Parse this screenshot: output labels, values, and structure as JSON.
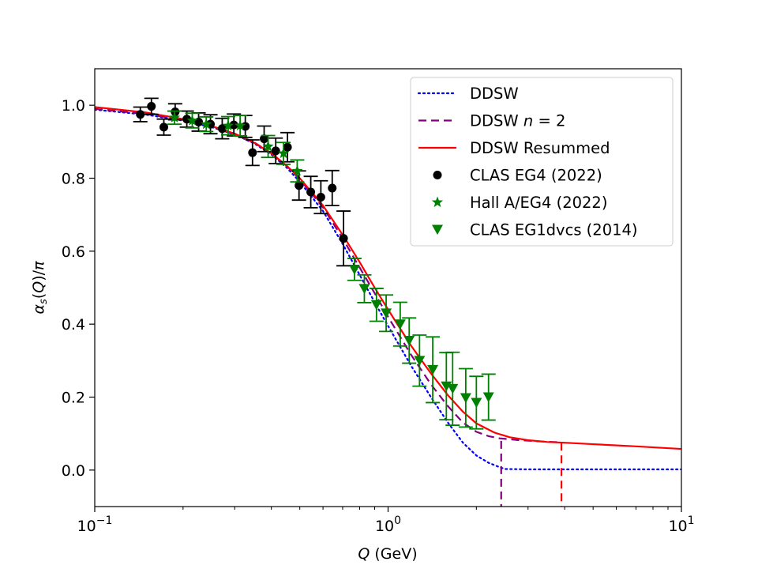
{
  "chart_data": {
    "type": "scatter",
    "title": "",
    "xlabel": "Q (GeV)",
    "ylabel": "αs(Q)/π",
    "xscale": "log",
    "xlim": [
      0.1,
      10
    ],
    "ylim": [
      -0.1,
      1.1
    ],
    "x_ticks": [
      {
        "value": 0.1,
        "base": "10",
        "exp": "−1"
      },
      {
        "value": 1,
        "base": "10",
        "exp": "0"
      },
      {
        "value": 10,
        "base": "10",
        "exp": "1"
      }
    ],
    "y_ticks": [
      {
        "value": 0.0,
        "label": "0.0"
      },
      {
        "value": 0.2,
        "label": "0.2"
      },
      {
        "value": 0.4,
        "label": "0.4"
      },
      {
        "value": 0.6,
        "label": "0.6"
      },
      {
        "value": 0.8,
        "label": "0.8"
      },
      {
        "value": 1.0,
        "label": "1.0"
      }
    ],
    "legend_position": "top-right",
    "legend": [
      {
        "label": "DDSW",
        "kind": "line",
        "style": "dotted",
        "color": "#0000ff"
      },
      {
        "label_main": "DDSW ",
        "label_italic": "n",
        "label_tail": " = 2",
        "kind": "line",
        "style": "dashed",
        "color": "#800080"
      },
      {
        "label": "DDSW Resummed",
        "kind": "line",
        "style": "solid",
        "color": "#ff0000"
      },
      {
        "label": "CLAS EG4 (2022)",
        "kind": "marker",
        "marker": "circle",
        "color": "#000000"
      },
      {
        "label": "Hall A/EG4 (2022)",
        "kind": "marker",
        "marker": "star",
        "color": "#008000"
      },
      {
        "label": "CLAS EG1dvcs (2014)",
        "kind": "marker",
        "marker": "triangle-down",
        "color": "#008000"
      }
    ],
    "series": [
      {
        "name": "DDSW",
        "kind": "line",
        "style": "dotted",
        "color": "#0000ff",
        "x": [
          0.1,
          0.15,
          0.2,
          0.25,
          0.3,
          0.35,
          0.4,
          0.45,
          0.5,
          0.6,
          0.7,
          0.8,
          0.9,
          1.0,
          1.2,
          1.4,
          1.6,
          1.8,
          2.0,
          2.2,
          2.4,
          2.5,
          3.0,
          5.0,
          10.0
        ],
        "y": [
          0.988,
          0.974,
          0.958,
          0.94,
          0.92,
          0.895,
          0.865,
          0.83,
          0.79,
          0.71,
          0.62,
          0.535,
          0.46,
          0.395,
          0.285,
          0.2,
          0.13,
          0.075,
          0.04,
          0.02,
          0.008,
          0.003,
          0.002,
          0.002,
          0.002
        ]
      },
      {
        "name": "DDSW n = 2",
        "kind": "line",
        "style": "dashed",
        "color": "#800080",
        "x": [
          0.1,
          0.15,
          0.2,
          0.25,
          0.3,
          0.35,
          0.4,
          0.45,
          0.5,
          0.6,
          0.7,
          0.8,
          0.9,
          1.0,
          1.2,
          1.4,
          1.6,
          1.8,
          2.0,
          2.2,
          2.4,
          2.8,
          3.4,
          3.9
        ],
        "y": [
          0.99,
          0.976,
          0.96,
          0.942,
          0.922,
          0.898,
          0.868,
          0.835,
          0.797,
          0.72,
          0.635,
          0.555,
          0.485,
          0.42,
          0.315,
          0.235,
          0.175,
          0.13,
          0.105,
          0.093,
          0.087,
          0.082,
          0.078,
          0.076
        ]
      },
      {
        "name": "DDSW Resummed",
        "kind": "line",
        "style": "solid",
        "color": "#ff0000",
        "x": [
          0.1,
          0.15,
          0.2,
          0.25,
          0.3,
          0.35,
          0.4,
          0.45,
          0.5,
          0.6,
          0.7,
          0.8,
          0.9,
          1.0,
          1.2,
          1.4,
          1.6,
          1.8,
          2.0,
          2.3,
          2.6,
          3.0,
          3.5,
          4.0,
          5.0,
          7.0,
          10.0
        ],
        "y": [
          0.995,
          0.98,
          0.962,
          0.943,
          0.922,
          0.897,
          0.868,
          0.835,
          0.8,
          0.725,
          0.645,
          0.57,
          0.5,
          0.44,
          0.34,
          0.265,
          0.205,
          0.16,
          0.128,
          0.103,
          0.09,
          0.082,
          0.077,
          0.075,
          0.071,
          0.065,
          0.058
        ]
      },
      {
        "name": "DDSW n = 2 cutoff",
        "kind": "vline",
        "style": "dashed",
        "color": "#800080",
        "x": 2.43,
        "y_from": -0.1,
        "y_to": 0.08
      },
      {
        "name": "DDSW Resummed cutoff",
        "kind": "vline",
        "style": "dashed",
        "color": "#ff0000",
        "x": 3.9,
        "y_from": -0.1,
        "y_to": 0.075
      },
      {
        "name": "CLAS EG4 (2022)",
        "kind": "points",
        "marker": "circle",
        "color": "#000000",
        "points": [
          {
            "x": 0.143,
            "y": 0.975,
            "err": 0.02
          },
          {
            "x": 0.156,
            "y": 0.997,
            "err": 0.022
          },
          {
            "x": 0.172,
            "y": 0.94,
            "err": 0.022
          },
          {
            "x": 0.188,
            "y": 0.982,
            "err": 0.022
          },
          {
            "x": 0.206,
            "y": 0.962,
            "err": 0.022
          },
          {
            "x": 0.226,
            "y": 0.954,
            "err": 0.025
          },
          {
            "x": 0.248,
            "y": 0.948,
            "err": 0.026
          },
          {
            "x": 0.272,
            "y": 0.936,
            "err": 0.028
          },
          {
            "x": 0.298,
            "y": 0.946,
            "err": 0.03
          },
          {
            "x": 0.326,
            "y": 0.942,
            "err": 0.03
          },
          {
            "x": 0.345,
            "y": 0.87,
            "err": 0.035
          },
          {
            "x": 0.378,
            "y": 0.908,
            "err": 0.035
          },
          {
            "x": 0.414,
            "y": 0.875,
            "err": 0.035
          },
          {
            "x": 0.454,
            "y": 0.885,
            "err": 0.04
          },
          {
            "x": 0.497,
            "y": 0.78,
            "err": 0.04
          },
          {
            "x": 0.545,
            "y": 0.762,
            "err": 0.043
          },
          {
            "x": 0.59,
            "y": 0.748,
            "err": 0.045
          },
          {
            "x": 0.645,
            "y": 0.773,
            "err": 0.048
          },
          {
            "x": 0.705,
            "y": 0.635,
            "err": 0.075
          }
        ]
      },
      {
        "name": "Hall A/EG4 (2022)",
        "kind": "points",
        "marker": "star",
        "color": "#008000",
        "points": [
          {
            "x": 0.187,
            "y": 0.966,
            "err": 0.018
          },
          {
            "x": 0.215,
            "y": 0.958,
            "err": 0.02
          },
          {
            "x": 0.24,
            "y": 0.948,
            "err": 0.02
          },
          {
            "x": 0.285,
            "y": 0.944,
            "err": 0.025
          },
          {
            "x": 0.313,
            "y": 0.944,
            "err": 0.028
          },
          {
            "x": 0.39,
            "y": 0.887,
            "err": 0.03
          },
          {
            "x": 0.44,
            "y": 0.868,
            "err": 0.03
          },
          {
            "x": 0.49,
            "y": 0.82,
            "err": 0.03
          }
        ]
      },
      {
        "name": "CLAS EG1dvcs (2014)",
        "kind": "points",
        "marker": "triangle-down",
        "color": "#008000",
        "points": [
          {
            "x": 0.768,
            "y": 0.55,
            "err": 0.03
          },
          {
            "x": 0.83,
            "y": 0.497,
            "err": 0.038
          },
          {
            "x": 0.913,
            "y": 0.453,
            "err": 0.045
          },
          {
            "x": 0.985,
            "y": 0.43,
            "err": 0.05
          },
          {
            "x": 1.1,
            "y": 0.4,
            "err": 0.06
          },
          {
            "x": 1.18,
            "y": 0.355,
            "err": 0.062
          },
          {
            "x": 1.28,
            "y": 0.3,
            "err": 0.07
          },
          {
            "x": 1.42,
            "y": 0.275,
            "err": 0.09
          },
          {
            "x": 1.58,
            "y": 0.23,
            "err": 0.092
          },
          {
            "x": 1.66,
            "y": 0.223,
            "err": 0.1
          },
          {
            "x": 1.84,
            "y": 0.198,
            "err": 0.08
          },
          {
            "x": 2.0,
            "y": 0.185,
            "err": 0.072
          },
          {
            "x": 2.2,
            "y": 0.2,
            "err": 0.063
          }
        ]
      }
    ]
  }
}
